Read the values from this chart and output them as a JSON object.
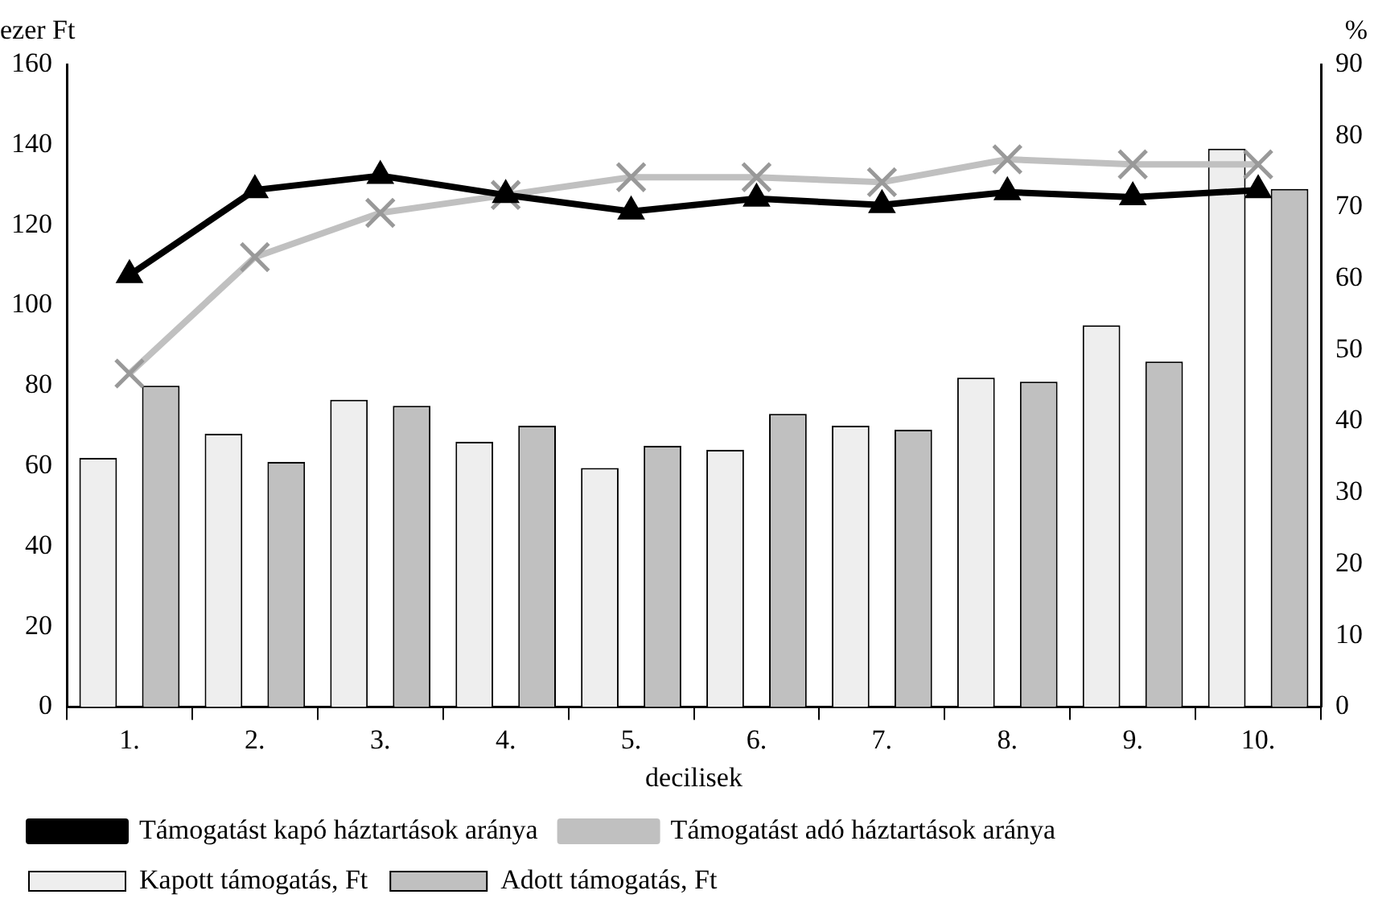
{
  "chart_data": {
    "type": "bar",
    "xlabel": "decilisek",
    "ylabel": "ezer Ft",
    "y2label": "%",
    "categories": [
      "1.",
      "2.",
      "3.",
      "4.",
      "5.",
      "6.",
      "7.",
      "8.",
      "9.",
      "10."
    ],
    "series": [
      {
        "name": "Kapott támogatás, Ft",
        "color": "#eeeeee",
        "values": [
          62,
          68,
          76.5,
          66,
          59.5,
          64,
          70,
          82,
          95,
          139
        ]
      },
      {
        "name": "Adott támogatás, Ft",
        "color": "#c0c0c0",
        "values": [
          80,
          61,
          75,
          70,
          65,
          73,
          69,
          81,
          86,
          129
        ]
      },
      {
        "name": "Támogatást kapó háztartások aránya",
        "type": "line",
        "axis": "y2",
        "color": "#000000",
        "marker": "triangle",
        "values": [
          60.5,
          72.4,
          74.4,
          71.7,
          69.4,
          71.2,
          70.3,
          72.1,
          71.4,
          72.4
        ]
      },
      {
        "name": "Támogatást adó háztartások aránya",
        "type": "line",
        "axis": "y2",
        "color": "#c0c0c0",
        "marker": "cross",
        "values": [
          46.7,
          63,
          69.2,
          71.7,
          74.2,
          74.2,
          73.5,
          76.7,
          76,
          76
        ]
      }
    ],
    "ylim": [
      0,
      160
    ],
    "yticks": [
      0,
      20,
      40,
      60,
      80,
      100,
      120,
      140,
      160
    ],
    "y2lim": [
      0,
      90
    ],
    "y2ticks": [
      0,
      10,
      20,
      30,
      40,
      50,
      60,
      70,
      80,
      90
    ],
    "grid": false,
    "legend": "bottom"
  }
}
